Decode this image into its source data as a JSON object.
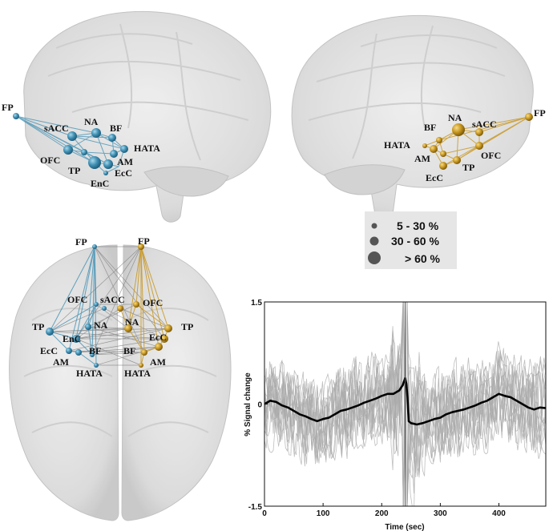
{
  "lateral_left": {
    "labels": {
      "FP": "FP",
      "sACC": "sACC",
      "NA": "NA",
      "BF": "BF",
      "HATA": "HATA",
      "OFC": "OFC",
      "AM": "AM",
      "TP": "TP",
      "EcC": "EcC",
      "EnC": "EnC"
    }
  },
  "lateral_right": {
    "labels": {
      "BF": "BF",
      "NA": "NA",
      "sACC": "sACC",
      "FP": "FP",
      "HATA": "HATA",
      "OFC": "OFC",
      "AM": "AM",
      "TP": "TP",
      "EcC": "EcC"
    }
  },
  "axial": {
    "labels": {
      "FP_L": "FP",
      "FP_R": "FP",
      "OFC_L": "OFC",
      "sACC": "sACC",
      "OFC_R": "OFC",
      "TP_L": "TP",
      "NA_L": "NA",
      "NA_R": "NA",
      "TP_R": "TP",
      "EnC": "EnC",
      "EcC_L": "EcC",
      "BF_L": "BF",
      "BF_R": "BF",
      "EcC_R": "EcC",
      "AM_L": "AM",
      "AM_R": "AM",
      "HATA_L": "HATA",
      "HATA_R": "HATA"
    }
  },
  "legend": {
    "items": [
      "5 - 30 %",
      "30 - 60 %",
      "> 60 %"
    ]
  },
  "colors": {
    "left_network": "#3f8fb3",
    "right_network": "#c8961f",
    "brain": "#d9d9d9",
    "legend_dot": "#555555",
    "trace_gray": "#a9a9a9",
    "trace_mean": "#000000"
  },
  "chart_data": {
    "type": "line",
    "xlabel": "Time (sec)",
    "ylabel": "% Signal change",
    "xlim": [
      0,
      480
    ],
    "ylim": [
      -1.5,
      1.5
    ],
    "x_ticks": [
      0,
      100,
      200,
      300,
      400
    ],
    "y_tick_labels": [
      "1.5",
      "0",
      "-1.5"
    ],
    "y_tick_values": [
      1.5,
      0,
      -1.5
    ],
    "event_time": 240,
    "series": [
      {
        "x": [
          0,
          10,
          20,
          30,
          40,
          50,
          60,
          70,
          80,
          90,
          100,
          110,
          120,
          130,
          140,
          150,
          160,
          170,
          180,
          190,
          200,
          210,
          220,
          230,
          236,
          240,
          242,
          244,
          246,
          250,
          260,
          270,
          280,
          290,
          300,
          310,
          320,
          330,
          340,
          350,
          360,
          370,
          380,
          390,
          400,
          410,
          420,
          430,
          440,
          450,
          460,
          470,
          480
        ],
        "values": [
          0.0,
          0.05,
          0.03,
          -0.02,
          -0.05,
          -0.1,
          -0.15,
          -0.18,
          -0.22,
          -0.25,
          -0.22,
          -0.2,
          -0.15,
          -0.1,
          -0.08,
          -0.05,
          -0.02,
          0.02,
          0.05,
          0.08,
          0.12,
          0.15,
          0.15,
          0.2,
          0.28,
          0.38,
          0.3,
          0.1,
          -0.25,
          -0.28,
          -0.3,
          -0.28,
          -0.25,
          -0.22,
          -0.2,
          -0.15,
          -0.12,
          -0.1,
          -0.08,
          -0.05,
          -0.02,
          0.02,
          0.05,
          0.1,
          0.15,
          0.12,
          0.1,
          0.05,
          0.0,
          -0.05,
          -0.08,
          -0.05,
          -0.06
        ]
      }
    ]
  }
}
